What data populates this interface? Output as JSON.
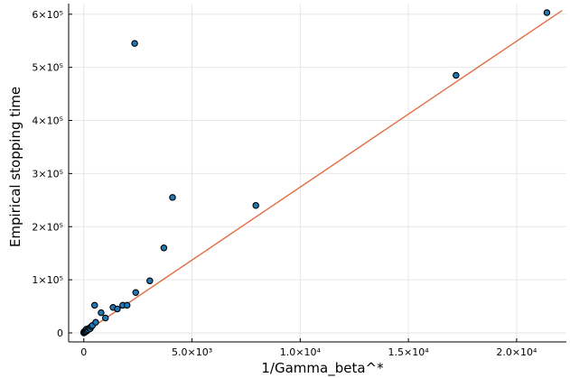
{
  "chart_data": {
    "type": "scatter",
    "xlabel": "1/Gamma_beta^*",
    "ylabel": "Empirical stopping time",
    "xlim": [
      -700,
      22300
    ],
    "ylim": [
      -17000,
      620000
    ],
    "x_ticks": [
      {
        "value": 0,
        "label": "0"
      },
      {
        "value": 5000,
        "label": "5.0×10³"
      },
      {
        "value": 10000,
        "label": "1.0×10⁴"
      },
      {
        "value": 15000,
        "label": "1.5×10⁴"
      },
      {
        "value": 20000,
        "label": "2.0×10⁴"
      }
    ],
    "y_ticks": [
      {
        "value": 0,
        "label": "0"
      },
      {
        "value": 100000,
        "label": "1×10⁵"
      },
      {
        "value": 200000,
        "label": "2×10⁵"
      },
      {
        "value": 300000,
        "label": "3×10⁵"
      },
      {
        "value": 400000,
        "label": "4×10⁵"
      },
      {
        "value": 500000,
        "label": "5×10⁵"
      },
      {
        "value": 600000,
        "label": "6×10⁵"
      }
    ],
    "grid": true,
    "legend": "none",
    "series": [
      {
        "type": "scatter",
        "color": "#1f77b4",
        "points": [
          {
            "x": 0,
            "y": 0
          },
          {
            "x": 5,
            "y": 1000
          },
          {
            "x": 10,
            "y": 2000
          },
          {
            "x": 20,
            "y": 500
          },
          {
            "x": 40,
            "y": 3000
          },
          {
            "x": 60,
            "y": 1500
          },
          {
            "x": 80,
            "y": 5000
          },
          {
            "x": 100,
            "y": 2500
          },
          {
            "x": 120,
            "y": 7000
          },
          {
            "x": 150,
            "y": 4000
          },
          {
            "x": 200,
            "y": 6000
          },
          {
            "x": 250,
            "y": 9000
          },
          {
            "x": 300,
            "y": 8000
          },
          {
            "x": 350,
            "y": 12000
          },
          {
            "x": 400,
            "y": 14000
          },
          {
            "x": 500,
            "y": 52000
          },
          {
            "x": 550,
            "y": 20000
          },
          {
            "x": 800,
            "y": 38000
          },
          {
            "x": 1000,
            "y": 28000
          },
          {
            "x": 1350,
            "y": 48000
          },
          {
            "x": 1550,
            "y": 45000
          },
          {
            "x": 1800,
            "y": 52000
          },
          {
            "x": 2000,
            "y": 52000
          },
          {
            "x": 2350,
            "y": 545000
          },
          {
            "x": 2400,
            "y": 76000
          },
          {
            "x": 3050,
            "y": 98000
          },
          {
            "x": 3700,
            "y": 160000
          },
          {
            "x": 4100,
            "y": 255000
          },
          {
            "x": 7950,
            "y": 240000
          },
          {
            "x": 17200,
            "y": 485000
          },
          {
            "x": 21400,
            "y": 603000
          }
        ]
      },
      {
        "type": "line",
        "color": "#e26f46",
        "points": [
          {
            "x": -100,
            "y": -3000
          },
          {
            "x": 22100,
            "y": 607000
          }
        ]
      }
    ]
  }
}
